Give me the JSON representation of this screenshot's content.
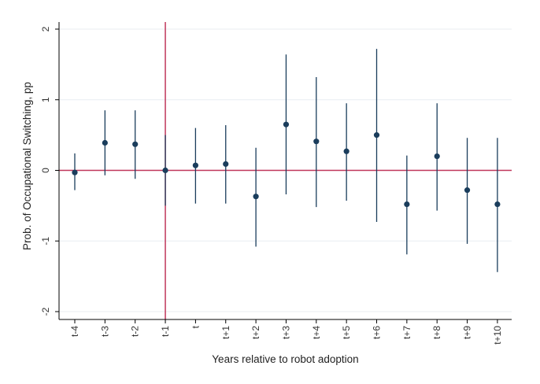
{
  "chart_data": {
    "type": "scatter",
    "subtype": "coefficient-plot-with-confidence-intervals",
    "xlabel": "Years relative to robot adoption",
    "ylabel": "Prob. of Occupational Switching, pp",
    "categories": [
      "t-4",
      "t-3",
      "t-2",
      "t-1",
      "t",
      "t+1",
      "t+2",
      "t+3",
      "t+4",
      "t+5",
      "t+6",
      "t+7",
      "t+8",
      "t+9",
      "t+10"
    ],
    "series": [
      {
        "values": [
          -0.03,
          0.39,
          0.37,
          0.0,
          0.07,
          0.09,
          -0.37,
          0.65,
          0.41,
          0.27,
          0.5,
          -0.48,
          0.2,
          -0.28,
          -0.48
        ],
        "ci_low": [
          -0.28,
          -0.07,
          -0.12,
          -0.5,
          -0.47,
          -0.47,
          -1.08,
          -0.34,
          -0.52,
          -0.43,
          -0.73,
          -1.19,
          -0.57,
          -1.04,
          -1.44
        ],
        "ci_high": [
          0.24,
          0.85,
          0.85,
          0.5,
          0.6,
          0.64,
          0.32,
          1.64,
          1.32,
          0.95,
          1.72,
          0.21,
          0.95,
          0.46,
          0.46
        ]
      }
    ],
    "yticks": [
      "-2",
      "-1",
      "0",
      "1",
      "2"
    ],
    "ytick_values": [
      -2,
      -1,
      0,
      1,
      2
    ],
    "ylim": [
      -2.1,
      2.1
    ],
    "reference_lines": [
      {
        "axis": "y",
        "value": 0,
        "color": "#c0365a"
      },
      {
        "axis": "x",
        "category": "t-1",
        "color": "#c0365a"
      }
    ],
    "grid": true,
    "legend": "none",
    "colors": {
      "marker": "#1a3d5c",
      "ci": "#1a3d5c",
      "reference": "#c0365a",
      "grid": "#e8eef2"
    }
  }
}
